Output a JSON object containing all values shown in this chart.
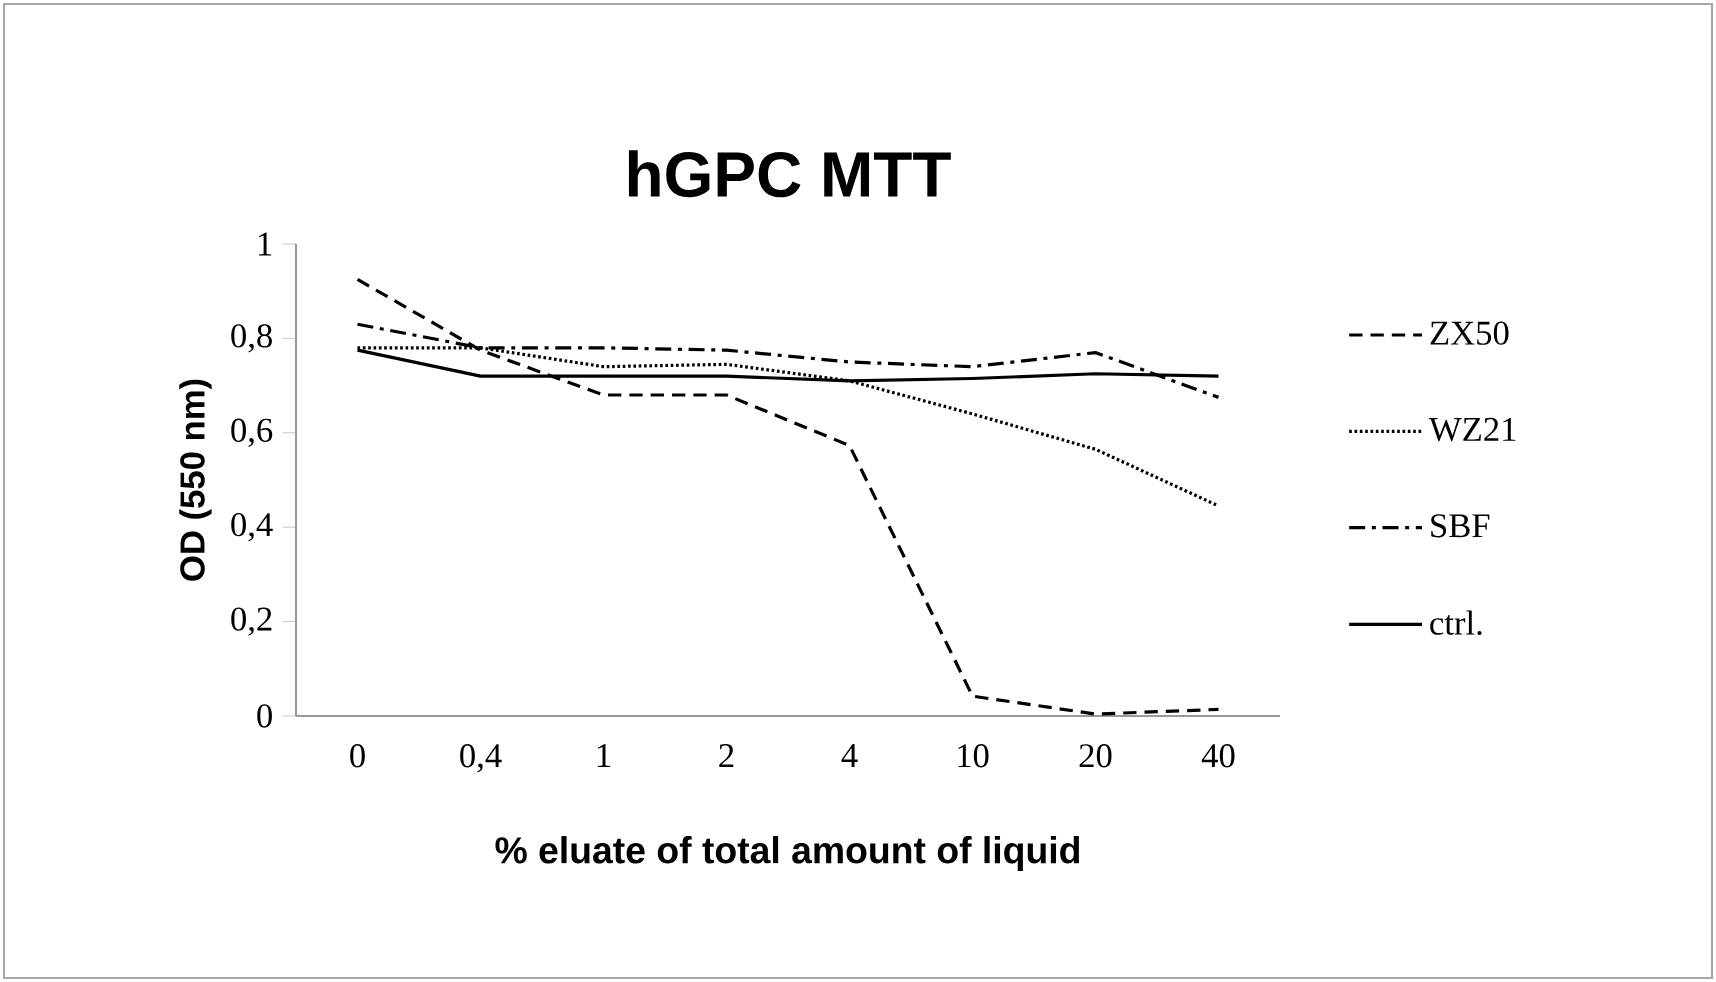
{
  "chart_data": {
    "type": "line",
    "title": "hGPC MTT",
    "xlabel": "% eluate of total amount of liquid",
    "ylabel": "OD (550 nm)",
    "categories": [
      "0",
      "0,4",
      "1",
      "2",
      "4",
      "10",
      "20",
      "40"
    ],
    "ylim": [
      0,
      1
    ],
    "yticks": [
      0,
      {
        "value": 0.2,
        "label": "0,2"
      },
      {
        "value": 0.4,
        "label": "0,4"
      },
      {
        "value": 0.6,
        "label": "0,6"
      },
      {
        "value": 0.8,
        "label": "0,8"
      },
      1
    ],
    "grid": false,
    "legend": "right",
    "marker": "none",
    "series": [
      {
        "name": "ZX50",
        "color": "#000000",
        "line_style": "dashed",
        "values": [
          0.925,
          0.775,
          0.68,
          0.68,
          0.573,
          0.042,
          0.004,
          0.014
        ]
      },
      {
        "name": "WZ21",
        "color": "#000000",
        "line_style": "dotted",
        "values": [
          0.78,
          0.78,
          0.74,
          0.745,
          0.71,
          0.64,
          0.565,
          0.445
        ]
      },
      {
        "name": "SBF",
        "color": "#000000",
        "line_style": "dashdot",
        "values": [
          0.83,
          0.78,
          0.78,
          0.775,
          0.75,
          0.74,
          0.77,
          0.675
        ]
      },
      {
        "name": "ctrl.",
        "color": "#000000",
        "line_style": "solid",
        "values": [
          0.775,
          0.72,
          0.72,
          0.72,
          0.71,
          0.715,
          0.725,
          0.72
        ]
      }
    ]
  }
}
